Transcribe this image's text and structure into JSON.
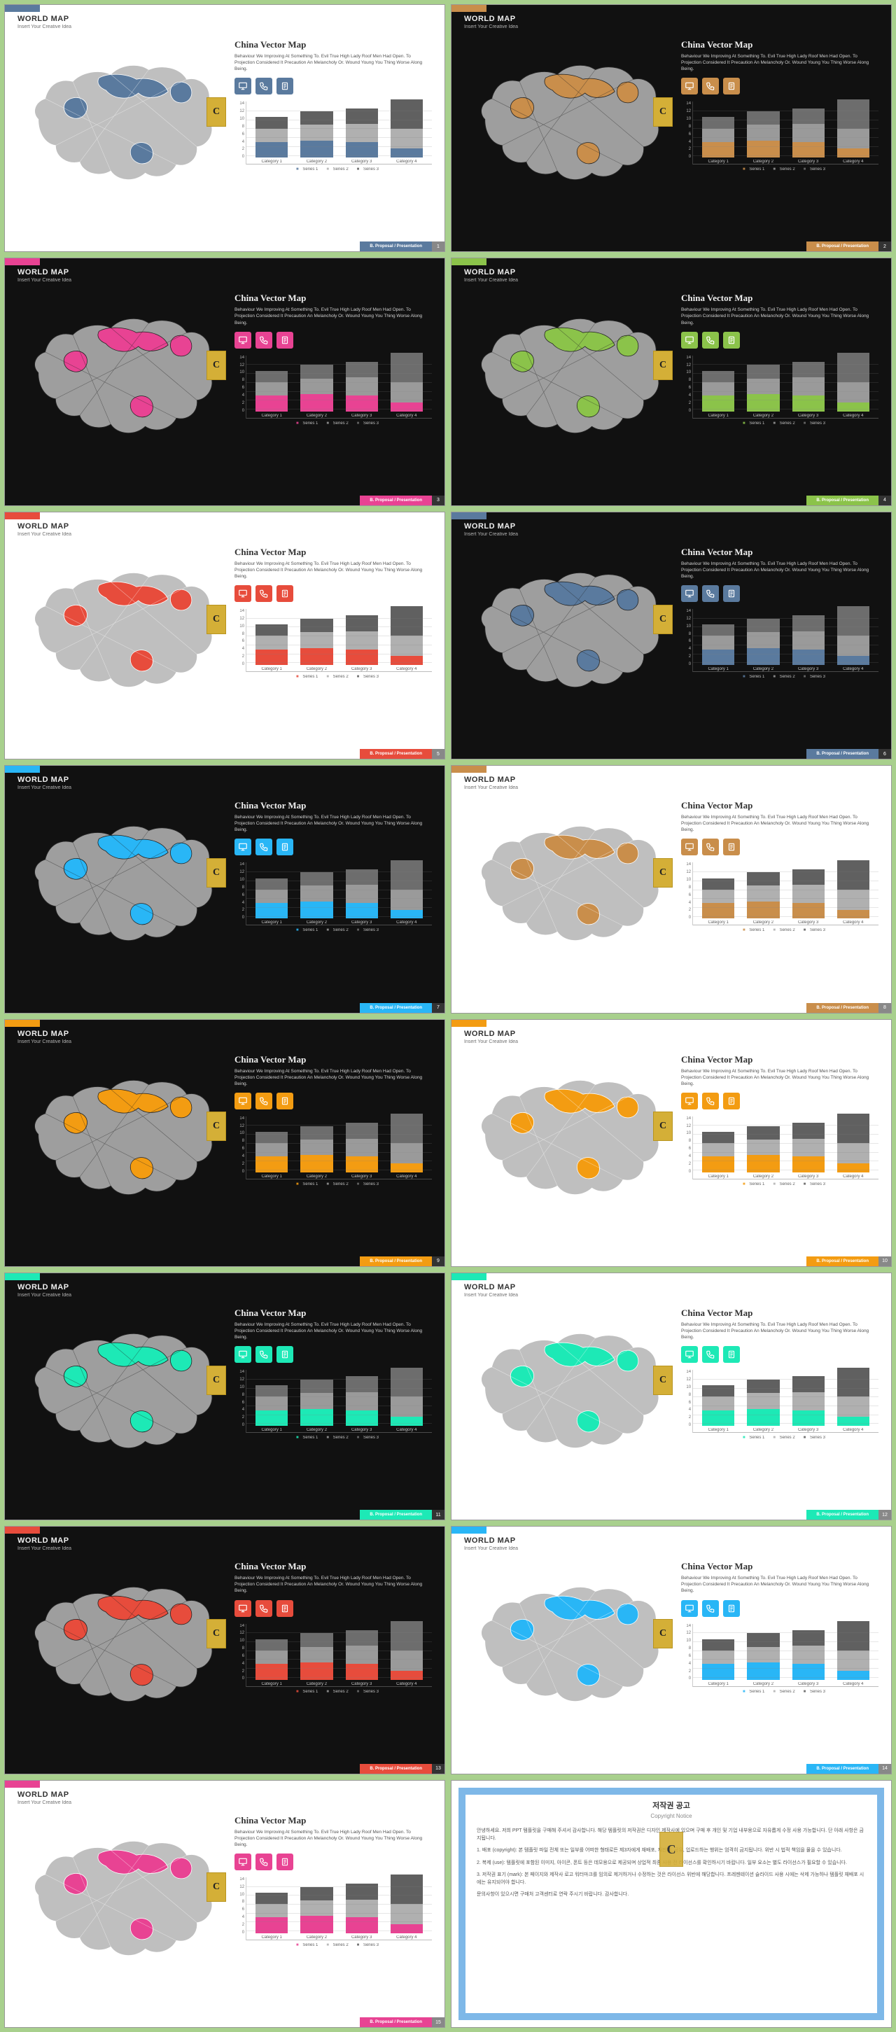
{
  "page_bg": "#a8d08d",
  "header": {
    "title": "WORLD MAP",
    "sub": "Insert Your Creative Idea"
  },
  "content": {
    "title": "China Vector Map",
    "desc": "Behaviour We Improving At Something To. Evil True High Lady Roof Men Had Open. To Projection Considered It Precaution An Melancholy Or. Wound Young You Thing Worse Along Being.",
    "badge": "C"
  },
  "icons": [
    "monitor-icon",
    "phone-icon",
    "clipboard-icon"
  ],
  "chart": {
    "ymax": 14,
    "yticks": [
      14,
      12,
      10,
      8,
      6,
      4,
      2,
      0
    ],
    "categories": [
      "Category 1",
      "Category 2",
      "Category 3",
      "Category 4"
    ],
    "series_labels": [
      "Series 1",
      "Series 2",
      "Series 3"
    ],
    "stacks": [
      [
        3.5,
        3.0,
        2.5
      ],
      [
        3.8,
        3.5,
        3.0
      ],
      [
        3.5,
        4.0,
        3.5
      ],
      [
        2.0,
        4.5,
        6.5
      ]
    ],
    "neutral_colors_dark": [
      "#9a9a9a",
      "#6d6d6d"
    ],
    "neutral_colors_light": [
      "#b0b0b0",
      "#606060"
    ]
  },
  "footer": {
    "label": "B. Proposal / Presentation"
  },
  "slides": [
    {
      "theme": "light",
      "accent": "#5a7a9e",
      "num": "1"
    },
    {
      "theme": "dark",
      "accent": "#c98e4b",
      "num": "2"
    },
    {
      "theme": "dark",
      "accent": "#e84393",
      "num": "3"
    },
    {
      "theme": "dark",
      "accent": "#8bc34a",
      "num": "4"
    },
    {
      "theme": "light",
      "accent": "#e74c3c",
      "num": "5"
    },
    {
      "theme": "dark",
      "accent": "#5a7a9e",
      "num": "6"
    },
    {
      "theme": "dark",
      "accent": "#29b6f6",
      "num": "7"
    },
    {
      "theme": "light",
      "accent": "#c98e4b",
      "num": "8"
    },
    {
      "theme": "dark",
      "accent": "#f39c12",
      "num": "9"
    },
    {
      "theme": "light",
      "accent": "#f39c12",
      "num": "10"
    },
    {
      "theme": "dark",
      "accent": "#1de9b6",
      "num": "11"
    },
    {
      "theme": "light",
      "accent": "#1de9b6",
      "num": "12"
    },
    {
      "theme": "dark",
      "accent": "#e74c3c",
      "num": "13"
    },
    {
      "theme": "light",
      "accent": "#29b6f6",
      "num": "14"
    },
    {
      "theme": "light",
      "accent": "#e84393",
      "num": "15"
    }
  ],
  "copyright": {
    "title": "저작권 공고",
    "sub": "Copyright Notice",
    "paragraphs": [
      "안녕하세요. 저희 PPT 템플릿을 구매해 주셔서 감사합니다. 해당 템플릿의 저작권은 디자인 제작사에 있으며 구매 후 개인 및 기업 내부용으로 자유롭게 수정 사용 가능합니다. 단 아래 사항은 금지됩니다.",
      "1. 배포 (copyright): 본 템플릿 파일 전체 또는 일부를 어떠한 형태로든 제3자에게 재배포, 재판매, 공유, 업로드하는 행위는 엄격히 금지됩니다. 위반 시 법적 책임을 물을 수 있습니다.",
      "2. 복제 (use): 템플릿에 포함된 이미지, 아이콘, 폰트 등은 데모용으로 제공되며 상업적 최종 사용 전 라이선스를 확인하시기 바랍니다. 일부 요소는 별도 라이선스가 필요할 수 있습니다.",
      "3. 저작권 표기 (mark): 본 페이지와 제작사 로고 워터마크를 임의로 제거하거나 수정하는 것은 라이선스 위반에 해당합니다. 프레젠테이션 슬라이드 사용 시에는 삭제 가능하나 템플릿 재배포 시에는 유지되어야 합니다.",
      "문의사항이 있으시면 구매처 고객센터로 연락 주시기 바랍니다. 감사합니다."
    ]
  }
}
